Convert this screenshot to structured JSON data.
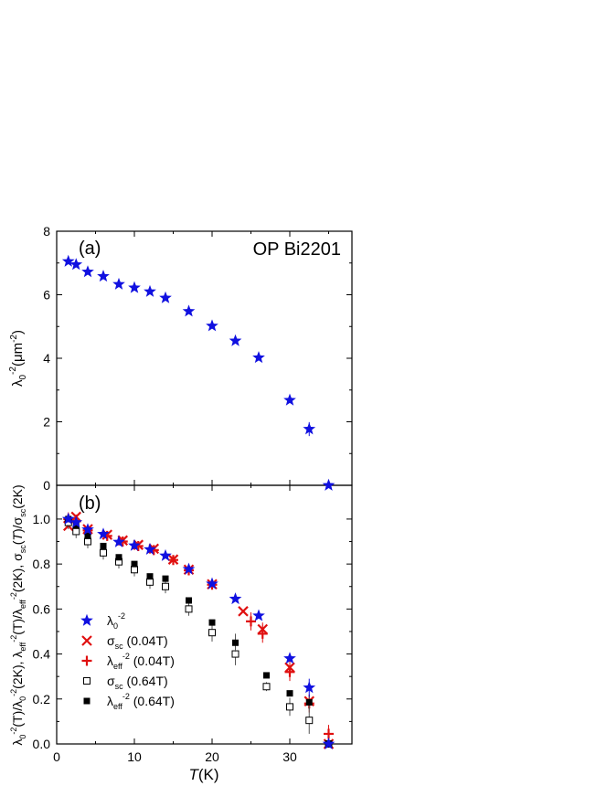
{
  "colors": {
    "blue": "#1010e0",
    "red": "#e01010",
    "black": "#000000"
  },
  "chart_data": [
    {
      "panel": "a",
      "type": "scatter",
      "panel_label": "(a)",
      "annotation": "OP Bi2201",
      "ylabel_main": "λ",
      "ylabel_sub": "0",
      "ylabel_sup": "-2",
      "ylabel_unit": "(μm",
      "ylabel_unit_sup": "-2",
      "ylabel_close": ")",
      "xlim": [
        0,
        38
      ],
      "ylim": [
        0,
        8
      ],
      "yticks": [
        0,
        2,
        4,
        6,
        8
      ],
      "ytick_labels": [
        "0",
        "2",
        "4",
        "6",
        "8"
      ],
      "series": [
        {
          "marker": "star",
          "color": "#1010e0",
          "x": [
            1.5,
            2.5,
            4,
            6,
            8,
            10,
            12,
            14,
            17,
            20,
            23,
            26,
            30,
            32.5,
            35
          ],
          "y": [
            7.05,
            6.95,
            6.72,
            6.58,
            6.33,
            6.22,
            6.1,
            5.9,
            5.48,
            5.02,
            4.55,
            4.02,
            2.68,
            1.77,
            0.0
          ],
          "err": [
            0,
            0,
            0,
            0,
            0,
            0,
            0,
            0,
            0,
            0,
            0,
            0,
            0,
            0.22,
            0
          ]
        }
      ]
    },
    {
      "panel": "b",
      "type": "scatter",
      "panel_label": "(b)",
      "xlabel_italic": "T",
      "xlabel_rest": "(K)",
      "xlim": [
        0,
        38
      ],
      "ylim": [
        0,
        1.15
      ],
      "xticks": [
        0,
        10,
        20,
        30
      ],
      "xtick_labels": [
        "0",
        "10",
        "20",
        "30"
      ],
      "yticks": [
        0,
        0.2,
        0.4,
        0.6,
        0.8,
        1.0
      ],
      "ytick_labels": [
        "0.0",
        "0.2",
        "0.4",
        "0.6",
        "0.8",
        "1.0"
      ],
      "ylabel_text": "λ0-2(T)/λ0-2(2K), λeff-2(T)/λeff-2(2K), σsc(T)/σsc(2K)",
      "series": [
        {
          "marker": "star",
          "color": "#1010e0",
          "legend_main": "λ",
          "legend_sub": "0",
          "legend_sup": "-2",
          "legend_rest": "",
          "x": [
            1.5,
            2.5,
            4,
            6,
            8,
            10,
            12,
            14,
            17,
            20,
            23,
            26,
            30,
            32.5,
            35
          ],
          "y": [
            1.0,
            0.985,
            0.953,
            0.933,
            0.898,
            0.882,
            0.865,
            0.837,
            0.777,
            0.712,
            0.645,
            0.57,
            0.38,
            0.25,
            0.0
          ],
          "err": [
            0,
            0,
            0,
            0,
            0,
            0,
            0,
            0,
            0,
            0,
            0,
            0,
            0,
            0.04,
            0
          ]
        },
        {
          "marker": "x",
          "color": "#e01010",
          "legend_main": "σ",
          "legend_sub": "sc",
          "legend_sup": "",
          "legend_rest": " (0.04T)",
          "x": [
            1.5,
            2.5,
            4,
            6.5,
            8.5,
            10.5,
            12.5,
            15,
            17,
            20,
            24,
            26.5,
            30,
            32.5,
            35
          ],
          "y": [
            0.97,
            1.01,
            0.955,
            0.93,
            0.905,
            0.885,
            0.868,
            0.82,
            0.775,
            0.71,
            0.59,
            0.51,
            0.34,
            0.19,
            0.0
          ],
          "err": [
            0,
            0,
            0,
            0,
            0,
            0,
            0,
            0,
            0,
            0,
            0,
            0.03,
            0.03,
            0.03,
            0
          ]
        },
        {
          "marker": "plus",
          "color": "#e01010",
          "legend_main": "λ",
          "legend_sub": "eff",
          "legend_sup": "-2",
          "legend_rest": " (0.04T)",
          "x": [
            1.5,
            2.5,
            4,
            6.5,
            8.5,
            10.5,
            12.5,
            15,
            17,
            20,
            25,
            26.5,
            30,
            32.5,
            35
          ],
          "y": [
            1.0,
            0.99,
            0.95,
            0.925,
            0.9,
            0.88,
            0.862,
            0.818,
            0.772,
            0.708,
            0.545,
            0.49,
            0.32,
            0.18,
            0.045
          ],
          "err": [
            0.03,
            0.03,
            0,
            0,
            0,
            0,
            0,
            0,
            0,
            0,
            0.04,
            0.04,
            0.04,
            0.04,
            0.04
          ]
        },
        {
          "marker": "square-open",
          "color": "#000000",
          "legend_main": "σ",
          "legend_sub": "sc",
          "legend_sup": "",
          "legend_rest": " (0.64T)",
          "x": [
            1.5,
            2.5,
            4,
            6,
            8,
            10,
            12,
            14,
            17,
            20,
            23,
            27,
            30,
            32.5,
            35
          ],
          "y": [
            0.985,
            0.945,
            0.9,
            0.85,
            0.81,
            0.775,
            0.72,
            0.7,
            0.6,
            0.495,
            0.4,
            0.255,
            0.165,
            0.105,
            0.0
          ],
          "err": [
            0.03,
            0.03,
            0.03,
            0.03,
            0.03,
            0.03,
            0.03,
            0.03,
            0.03,
            0.04,
            0.05,
            0.02,
            0.04,
            0.06,
            0
          ]
        },
        {
          "marker": "square-filled",
          "color": "#000000",
          "legend_main": "λ",
          "legend_sub": "eff",
          "legend_sup": "-2",
          "legend_rest": " (0.64T)",
          "x": [
            1.5,
            2.5,
            4,
            6,
            8,
            10,
            12,
            14,
            17,
            20,
            23,
            27,
            30,
            32.5,
            35
          ],
          "y": [
            1.0,
            0.97,
            0.925,
            0.88,
            0.83,
            0.8,
            0.745,
            0.735,
            0.638,
            0.54,
            0.45,
            0.305,
            0.225,
            0.185,
            0.0
          ],
          "err": [
            0,
            0,
            0,
            0,
            0,
            0,
            0,
            0,
            0,
            0,
            0.04,
            0,
            0,
            0.03,
            0
          ]
        }
      ]
    }
  ]
}
